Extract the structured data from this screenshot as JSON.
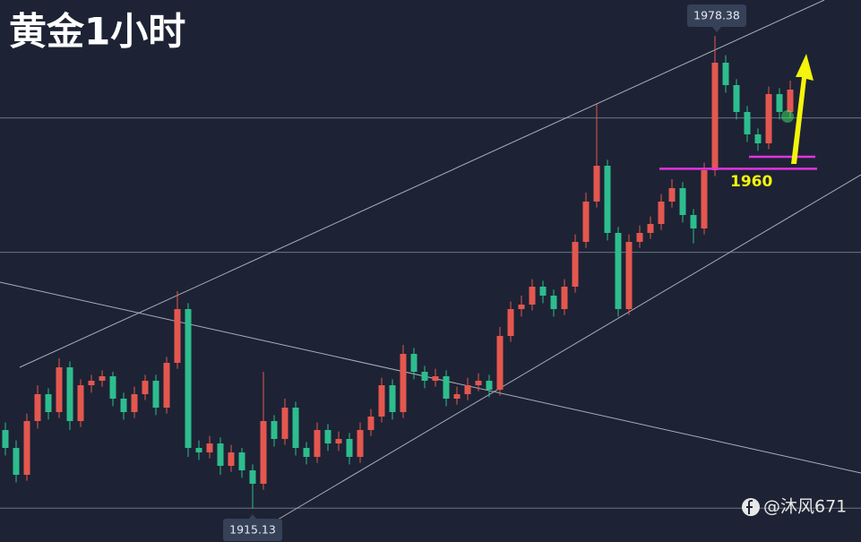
{
  "chart_data": {
    "type": "candlestick",
    "title": "黄金1小时",
    "ylim": [
      1910.6,
      1983.2
    ],
    "up_color": "#e4574f",
    "down_color": "#2dbd8e",
    "levels": [
      1967.4,
      1949.4,
      1915.13
    ],
    "level_color": "#7f8a96",
    "support_levels": [
      1960.6,
      1962.2
    ],
    "support_color": "#e233e2",
    "support_label": "1960",
    "watermark": "@沐风671",
    "ohlc": [
      [
        1925.6,
        1926.6,
        1922.2,
        1923.2
      ],
      [
        1923.2,
        1924.2,
        1918.6,
        1919.6
      ],
      [
        1919.6,
        1927.8,
        1918.8,
        1926.8
      ],
      [
        1926.8,
        1931.6,
        1925.8,
        1930.4
      ],
      [
        1930.4,
        1931.2,
        1927.0,
        1928.0
      ],
      [
        1928.0,
        1935.2,
        1927.2,
        1934.0
      ],
      [
        1934.0,
        1934.8,
        1925.6,
        1926.8
      ],
      [
        1926.8,
        1932.4,
        1926.0,
        1931.6
      ],
      [
        1931.6,
        1933.0,
        1930.6,
        1932.2
      ],
      [
        1932.2,
        1933.6,
        1931.4,
        1932.8
      ],
      [
        1932.8,
        1933.4,
        1928.8,
        1929.8
      ],
      [
        1929.8,
        1930.6,
        1927.0,
        1928.0
      ],
      [
        1928.0,
        1931.4,
        1927.2,
        1930.4
      ],
      [
        1930.4,
        1933.0,
        1929.6,
        1932.2
      ],
      [
        1932.2,
        1933.0,
        1927.6,
        1928.6
      ],
      [
        1928.6,
        1935.4,
        1927.8,
        1934.6
      ],
      [
        1934.6,
        1944.2,
        1933.8,
        1941.8
      ],
      [
        1941.8,
        1942.6,
        1922.0,
        1923.2
      ],
      [
        1923.2,
        1924.2,
        1921.6,
        1922.6
      ],
      [
        1922.6,
        1924.8,
        1921.8,
        1923.8
      ],
      [
        1923.8,
        1924.6,
        1919.6,
        1920.8
      ],
      [
        1920.8,
        1923.6,
        1920.0,
        1922.6
      ],
      [
        1922.6,
        1923.2,
        1919.2,
        1920.2
      ],
      [
        1920.2,
        1921.0,
        1915.13,
        1918.4
      ],
      [
        1918.4,
        1933.4,
        1917.6,
        1926.8
      ],
      [
        1926.8,
        1927.6,
        1923.4,
        1924.4
      ],
      [
        1924.4,
        1929.8,
        1923.6,
        1928.6
      ],
      [
        1928.6,
        1929.4,
        1922.2,
        1923.2
      ],
      [
        1923.2,
        1924.0,
        1921.0,
        1922.0
      ],
      [
        1922.0,
        1926.6,
        1921.2,
        1925.6
      ],
      [
        1925.6,
        1926.4,
        1922.8,
        1923.8
      ],
      [
        1923.8,
        1925.4,
        1922.8,
        1924.4
      ],
      [
        1924.4,
        1925.2,
        1921.0,
        1922.0
      ],
      [
        1922.0,
        1926.6,
        1921.2,
        1925.6
      ],
      [
        1925.6,
        1928.4,
        1924.8,
        1927.4
      ],
      [
        1927.4,
        1932.6,
        1926.6,
        1931.6
      ],
      [
        1931.6,
        1932.4,
        1927.0,
        1928.0
      ],
      [
        1928.0,
        1937.0,
        1927.2,
        1935.8
      ],
      [
        1935.8,
        1936.6,
        1932.4,
        1933.4
      ],
      [
        1933.4,
        1934.2,
        1931.2,
        1932.2
      ],
      [
        1932.2,
        1933.8,
        1931.4,
        1932.8
      ],
      [
        1932.8,
        1933.6,
        1928.8,
        1929.8
      ],
      [
        1929.8,
        1931.4,
        1929.0,
        1930.4
      ],
      [
        1930.4,
        1932.6,
        1929.6,
        1931.6
      ],
      [
        1931.6,
        1933.2,
        1930.8,
        1932.2
      ],
      [
        1932.2,
        1933.0,
        1930.0,
        1931.0
      ],
      [
        1931.0,
        1939.4,
        1930.2,
        1938.2
      ],
      [
        1938.2,
        1942.8,
        1937.4,
        1941.8
      ],
      [
        1941.8,
        1943.6,
        1940.8,
        1942.4
      ],
      [
        1942.4,
        1945.8,
        1941.6,
        1944.8
      ],
      [
        1944.8,
        1945.6,
        1942.6,
        1943.6
      ],
      [
        1943.6,
        1944.4,
        1940.8,
        1941.8
      ],
      [
        1941.8,
        1945.8,
        1941.0,
        1944.8
      ],
      [
        1944.8,
        1951.8,
        1944.0,
        1950.8
      ],
      [
        1950.8,
        1957.4,
        1950.0,
        1956.2
      ],
      [
        1956.2,
        1969.2,
        1955.4,
        1961.0
      ],
      [
        1961.0,
        1961.8,
        1951.0,
        1952.0
      ],
      [
        1952.0,
        1952.8,
        1940.8,
        1941.8
      ],
      [
        1941.8,
        1951.8,
        1941.0,
        1950.8
      ],
      [
        1950.8,
        1953.0,
        1950.0,
        1952.0
      ],
      [
        1952.0,
        1954.2,
        1951.2,
        1953.2
      ],
      [
        1953.2,
        1957.2,
        1952.4,
        1956.2
      ],
      [
        1956.2,
        1959.2,
        1955.4,
        1958.0
      ],
      [
        1958.0,
        1958.8,
        1953.4,
        1954.4
      ],
      [
        1954.4,
        1955.2,
        1950.6,
        1952.6
      ],
      [
        1952.6,
        1961.4,
        1951.8,
        1960.4
      ],
      [
        1960.4,
        1978.38,
        1959.6,
        1974.8
      ],
      [
        1974.8,
        1975.8,
        1970.8,
        1971.8
      ],
      [
        1971.8,
        1972.6,
        1967.2,
        1968.2
      ],
      [
        1968.2,
        1969.0,
        1964.2,
        1965.2
      ],
      [
        1965.2,
        1966.0,
        1963.0,
        1964.0
      ],
      [
        1964.0,
        1971.6,
        1963.2,
        1970.6
      ],
      [
        1970.6,
        1971.4,
        1967.2,
        1968.2
      ],
      [
        1968.2,
        1972.4,
        1967.4,
        1971.2
      ]
    ]
  }
}
